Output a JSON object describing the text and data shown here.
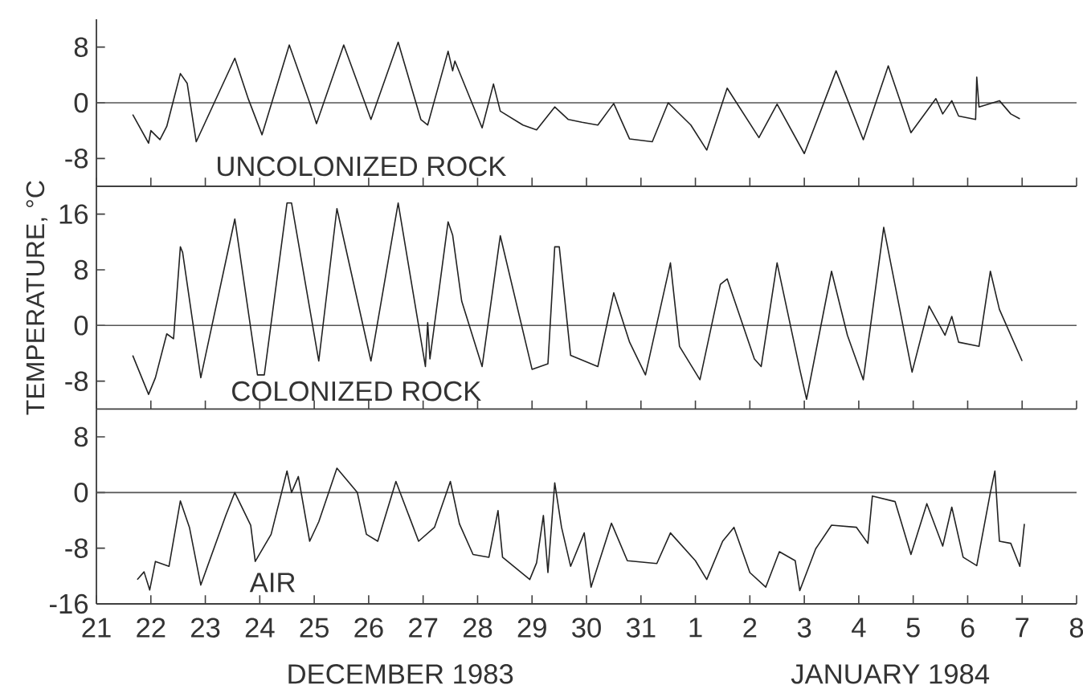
{
  "chart_data": [
    {
      "type": "line",
      "annotations": [
        "UNCOLONIZED ROCK"
      ],
      "xlim": [
        "1983-12-21",
        "1984-01-08"
      ],
      "ylim": [
        -12,
        12
      ],
      "yticks": [
        8,
        0,
        -8
      ],
      "xticks": [
        {
          "value": "1983-12-21",
          "label": null
        },
        {
          "value": "1983-12-22",
          "label": null
        },
        {
          "value": "1983-12-23",
          "label": null
        },
        {
          "value": "1983-12-24",
          "label": null
        },
        {
          "value": "1983-12-25",
          "label": null
        },
        {
          "value": "1983-12-26",
          "label": null
        },
        {
          "value": "1983-12-27",
          "label": null
        },
        {
          "value": "1983-12-28",
          "label": null
        },
        {
          "value": "1983-12-29",
          "label": null
        },
        {
          "value": "1983-12-30",
          "label": null
        },
        {
          "value": "1983-12-31",
          "label": null
        },
        {
          "value": "1984-01-01",
          "label": null
        },
        {
          "value": "1984-01-02",
          "label": null
        },
        {
          "value": "1984-01-03",
          "label": null
        },
        {
          "value": "1984-01-04",
          "label": null
        },
        {
          "value": "1984-01-05",
          "label": null
        },
        {
          "value": "1984-01-06",
          "label": null
        },
        {
          "value": "1984-01-07",
          "label": null
        },
        {
          "value": "1984-01-08",
          "label": null
        }
      ],
      "tick_labels": "y",
      "marker": "none",
      "line_style": "solid",
      "ref_lines": [
        {
          "axis": "y",
          "value": 0,
          "color": "#555555"
        }
      ],
      "series": [
        {
          "color": "#222222",
          "x": [
            "1983-12-21T16:00",
            "1983-12-21T23:00",
            "1983-12-22T00:00",
            "1983-12-22T04:00",
            "1983-12-22T07:00",
            "1983-12-22T10:00",
            "1983-12-22T13:00",
            "1983-12-22T16:00",
            "1983-12-22T20:00",
            "1983-12-23T13:00",
            "1983-12-23T19:00",
            "1983-12-24T01:00",
            "1983-12-24T13:00",
            "1983-12-24T22:00",
            "1983-12-25T01:00",
            "1983-12-25T13:00",
            "1983-12-25T23:00",
            "1983-12-26T01:00",
            "1983-12-26T13:00",
            "1983-12-26T23:00",
            "1983-12-27T02:00",
            "1983-12-27T11:00",
            "1983-12-27T13:00",
            "1983-12-27T14:00",
            "1983-12-28T02:00",
            "1983-12-28T07:00",
            "1983-12-28T10:00",
            "1983-12-28T20:00",
            "1983-12-29T02:00",
            "1983-12-29T10:00",
            "1983-12-29T16:00",
            "1983-12-29T22:00",
            "1983-12-30T05:00",
            "1983-12-30T12:00",
            "1983-12-30T19:00",
            "1983-12-31T05:00",
            "1983-12-31T12:00",
            "1983-12-31T22:00",
            "1984-01-01T05:00",
            "1984-01-01T14:00",
            "1984-01-02T04:00",
            "1984-01-02T12:00",
            "1984-01-03T00:00",
            "1984-01-03T14:00",
            "1984-01-04T02:00",
            "1984-01-04T13:00",
            "1984-01-04T23:00",
            "1984-01-05T10:00",
            "1984-01-05T13:00",
            "1984-01-05T17:00",
            "1984-01-05T20:00",
            "1984-01-06T03:30",
            "1984-01-06T04:00",
            "1984-01-06T05:00",
            "1984-01-06T14:00",
            "1984-01-06T19:00",
            "1984-01-06T23:00"
          ],
          "values": [
            -1.7,
            -5.8,
            -4,
            -5.3,
            -3.4,
            0.4,
            4.2,
            2.8,
            -5.6,
            6.4,
            0.5,
            -4.6,
            8.3,
            0,
            -3.0,
            8.3,
            -0.6,
            -2.4,
            8.7,
            -2.4,
            -3.2,
            7.4,
            4.6,
            6.0,
            -3.6,
            2.7,
            -1.2,
            -3.2,
            -3.9,
            -0.6,
            -2.4,
            -2.8,
            -3.2,
            -0.1,
            -5.2,
            -5.6,
            0,
            -3.2,
            -6.8,
            2.1,
            -5.0,
            -0.2,
            -7.3,
            4.6,
            -5.3,
            5.3,
            -4.3,
            0.6,
            -1.6,
            0.3,
            -1.9,
            -2.4,
            3.7,
            -0.6,
            0.3,
            -1.6,
            -2.3
          ]
        }
      ]
    },
    {
      "type": "line",
      "annotations": [
        "COLONIZED ROCK"
      ],
      "ylabel": "TEMPERATURE, °C",
      "xlim": [
        "1983-12-21",
        "1984-01-08"
      ],
      "ylim": [
        -12,
        20
      ],
      "yticks": [
        16,
        8,
        0,
        -8
      ],
      "xticks": [
        {
          "value": "1983-12-21",
          "label": null
        },
        {
          "value": "1983-12-22",
          "label": null
        },
        {
          "value": "1983-12-23",
          "label": null
        },
        {
          "value": "1983-12-24",
          "label": null
        },
        {
          "value": "1983-12-25",
          "label": null
        },
        {
          "value": "1983-12-26",
          "label": null
        },
        {
          "value": "1983-12-27",
          "label": null
        },
        {
          "value": "1983-12-28",
          "label": null
        },
        {
          "value": "1983-12-29",
          "label": null
        },
        {
          "value": "1983-12-30",
          "label": null
        },
        {
          "value": "1983-12-31",
          "label": null
        },
        {
          "value": "1984-01-01",
          "label": null
        },
        {
          "value": "1984-01-02",
          "label": null
        },
        {
          "value": "1984-01-03",
          "label": null
        },
        {
          "value": "1984-01-04",
          "label": null
        },
        {
          "value": "1984-01-05",
          "label": null
        },
        {
          "value": "1984-01-06",
          "label": null
        },
        {
          "value": "1984-01-07",
          "label": null
        },
        {
          "value": "1984-01-08",
          "label": null
        }
      ],
      "tick_labels": "y",
      "marker": "none",
      "line_style": "solid",
      "ref_lines": [
        {
          "axis": "y",
          "value": 0,
          "color": "#555555"
        }
      ],
      "series": [
        {
          "color": "#222222",
          "x": [
            "1983-12-21T16:00",
            "1983-12-21T23:00",
            "1983-12-22T02:00",
            "1983-12-22T07:00",
            "1983-12-22T10:00",
            "1983-12-22T13:00",
            "1983-12-22T14:00",
            "1983-12-22T22:00",
            "1983-12-23T13:00",
            "1983-12-23T23:00",
            "1983-12-24T02:00",
            "1983-12-24T12:00",
            "1983-12-24T14:00",
            "1983-12-25T02:00",
            "1983-12-25T10:00",
            "1983-12-26T01:00",
            "1983-12-26T13:00",
            "1983-12-27T01:00",
            "1983-12-27T02:00",
            "1983-12-27T03:00",
            "1983-12-27T11:00",
            "1983-12-27T13:00",
            "1983-12-27T17:00",
            "1983-12-28T02:00",
            "1983-12-28T10:00",
            "1983-12-29T00:00",
            "1983-12-29T07:00",
            "1983-12-29T10:00",
            "1983-12-29T12:00",
            "1983-12-29T17:00",
            "1983-12-30T05:00",
            "1983-12-30T12:00",
            "1983-12-30T19:00",
            "1983-12-31T02:00",
            "1983-12-31T13:00",
            "1983-12-31T17:00",
            "1984-01-01T02:00",
            "1984-01-01T11:00",
            "1984-01-01T14:00",
            "1984-01-02T02:00",
            "1984-01-02T05:00",
            "1984-01-02T12:00",
            "1984-01-02T22:00",
            "1984-01-03T01:00",
            "1984-01-03T12:00",
            "1984-01-03T19:00",
            "1984-01-04T02:00",
            "1984-01-04T11:00",
            "1984-01-04T23:30",
            "1984-01-05T07:00",
            "1984-01-05T14:00",
            "1984-01-05T17:00",
            "1984-01-05T20:00",
            "1984-01-06T05:00",
            "1984-01-06T10:00",
            "1984-01-06T14:00",
            "1984-01-07T00:00"
          ],
          "values": [
            -4.3,
            -9.9,
            -7.5,
            -1.2,
            -1.9,
            11.3,
            10.5,
            -7.5,
            15.3,
            -7.1,
            -7.1,
            17.6,
            17.6,
            -5.1,
            16.8,
            -5.1,
            17.6,
            -5.9,
            0.4,
            -4.8,
            14.9,
            13,
            3.5,
            -5.9,
            12.9,
            -6.3,
            -5.5,
            11.3,
            11.3,
            -4.3,
            -5.9,
            4.7,
            -2.4,
            -7.1,
            9.0,
            -3.0,
            -7.8,
            5.9,
            6.7,
            -4.8,
            -5.9,
            9.0,
            -6.3,
            -10.6,
            7.8,
            -1.4,
            -7.8,
            14.1,
            -6.7,
            2.8,
            -1.4,
            1.3,
            -2.4,
            -3.0,
            7.8,
            2.3,
            -5.1
          ]
        }
      ]
    },
    {
      "type": "line",
      "annotations": [
        "AIR",
        "DECEMBER 1983",
        "JANUARY 1984"
      ],
      "xlim": [
        "1983-12-21",
        "1984-01-08"
      ],
      "ylim": [
        -16,
        12
      ],
      "yticks": [
        8,
        0,
        -8,
        -16
      ],
      "xticks": [
        {
          "value": "1983-12-21",
          "label": "21"
        },
        {
          "value": "1983-12-22",
          "label": "22"
        },
        {
          "value": "1983-12-23",
          "label": "23"
        },
        {
          "value": "1983-12-24",
          "label": "24"
        },
        {
          "value": "1983-12-25",
          "label": "25"
        },
        {
          "value": "1983-12-26",
          "label": "26"
        },
        {
          "value": "1983-12-27",
          "label": "27"
        },
        {
          "value": "1983-12-28",
          "label": "28"
        },
        {
          "value": "1983-12-29",
          "label": "29"
        },
        {
          "value": "1983-12-30",
          "label": "30"
        },
        {
          "value": "1983-12-31",
          "label": "31"
        },
        {
          "value": "1984-01-01",
          "label": "1"
        },
        {
          "value": "1984-01-02",
          "label": "2"
        },
        {
          "value": "1984-01-03",
          "label": "3"
        },
        {
          "value": "1984-01-04",
          "label": "4"
        },
        {
          "value": "1984-01-05",
          "label": "5"
        },
        {
          "value": "1984-01-06",
          "label": "6"
        },
        {
          "value": "1984-01-07",
          "label": "7"
        },
        {
          "value": "1984-01-08",
          "label": "8"
        }
      ],
      "marker": "none",
      "line_style": "solid",
      "ref_lines": [
        {
          "axis": "y",
          "value": 0,
          "color": "#555555"
        }
      ],
      "series": [
        {
          "color": "#222222",
          "x": [
            "1983-12-21T18:00",
            "1983-12-21T21:00",
            "1983-12-21T23:30",
            "1983-12-22T02:00",
            "1983-12-22T08:00",
            "1983-12-22T13:00",
            "1983-12-22T17:00",
            "1983-12-22T22:00",
            "1983-12-23T09:00",
            "1983-12-23T13:00",
            "1983-12-23T20:00",
            "1983-12-23T22:00",
            "1983-12-24T05:00",
            "1983-12-24T12:00",
            "1983-12-24T14:00",
            "1983-12-24T17:00",
            "1983-12-24T22:00",
            "1983-12-25T02:00",
            "1983-12-25T10:00",
            "1983-12-25T19:00",
            "1983-12-25T23:00",
            "1983-12-26T04:00",
            "1983-12-26T12:00",
            "1983-12-26T22:00",
            "1983-12-27T05:00",
            "1983-12-27T12:00",
            "1983-12-27T16:00",
            "1983-12-27T22:00",
            "1983-12-28T05:00",
            "1983-12-28T09:00",
            "1983-12-28T11:00",
            "1983-12-28T23:00",
            "1983-12-29T02:00",
            "1983-12-29T05:00",
            "1983-12-29T07:00",
            "1983-12-29T10:00",
            "1983-12-29T13:00",
            "1983-12-29T17:00",
            "1983-12-29T23:00",
            "1983-12-30T02:00",
            "1983-12-30T11:00",
            "1983-12-30T18:00",
            "1983-12-31T07:00",
            "1983-12-31T13:00",
            "1984-01-01T00:00",
            "1984-01-01T05:00",
            "1984-01-01T12:00",
            "1984-01-01T17:00",
            "1984-01-02T00:00",
            "1984-01-02T07:00",
            "1984-01-02T13:00",
            "1984-01-02T20:00",
            "1984-01-02T22:00",
            "1984-01-03T05:00",
            "1984-01-03T12:00",
            "1984-01-03T23:00",
            "1984-01-04T04:00",
            "1984-01-04T06:00",
            "1984-01-04T16:00",
            "1984-01-04T23:00",
            "1984-01-05T06:00",
            "1984-01-05T13:00",
            "1984-01-05T17:00",
            "1984-01-05T22:00",
            "1984-01-06T04:00",
            "1984-01-06T10:00",
            "1984-01-06T12:00",
            "1984-01-06T14:00",
            "1984-01-06T19:00",
            "1984-01-06T23:00",
            "1984-01-07T01:00"
          ],
          "values": [
            -12.5,
            -11.4,
            -14.0,
            -9.9,
            -10.6,
            -1.2,
            -5.0,
            -13.3,
            -3.3,
            0,
            -4.7,
            -9.9,
            -6.0,
            3.1,
            0,
            2.3,
            -7.0,
            -4.2,
            3.5,
            0,
            -6.0,
            -7.0,
            1.6,
            -7.0,
            -5.0,
            1.6,
            -4.5,
            -8.9,
            -9.3,
            -2.6,
            -9.3,
            -12.5,
            -10.1,
            -3.3,
            -11.5,
            1.4,
            -5.0,
            -10.6,
            -5.8,
            -13.6,
            -4.4,
            -9.8,
            -10.2,
            -5.8,
            -9.8,
            -12.5,
            -7.0,
            -5.0,
            -11.5,
            -13.6,
            -8.5,
            -9.8,
            -14.1,
            -8.1,
            -4.7,
            -5.0,
            -7.3,
            -0.5,
            -1.3,
            -8.9,
            -1.6,
            -7.7,
            -2.1,
            -9.3,
            -10.5,
            0,
            3.1,
            -7.0,
            -7.3,
            -10.6,
            -4.5
          ]
        }
      ]
    }
  ]
}
